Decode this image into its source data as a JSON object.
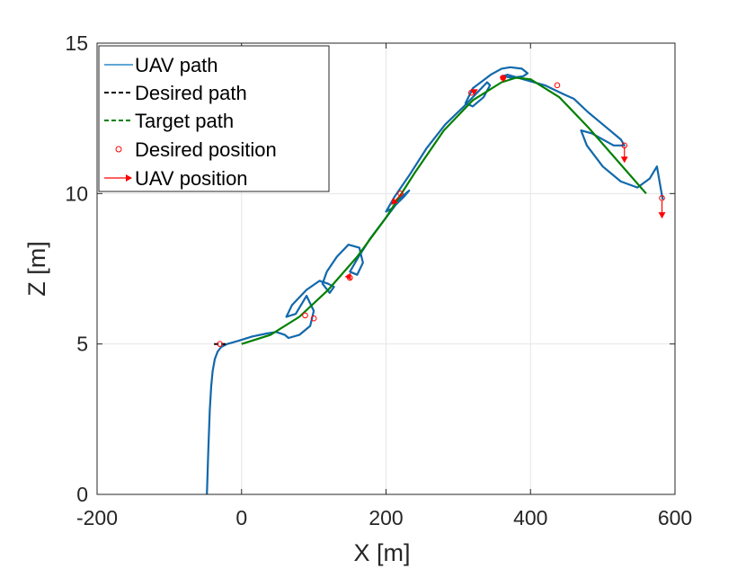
{
  "chart_data": {
    "type": "line",
    "title": "",
    "xlabel": "X [m]",
    "ylabel": "Z [m]",
    "xlim": [
      -200,
      600
    ],
    "ylim": [
      0,
      15
    ],
    "xticks": [
      -200,
      0,
      200,
      400,
      600
    ],
    "yticks": [
      0,
      5,
      10,
      15
    ],
    "xtick_labels": [
      "-200",
      "0",
      "200",
      "400",
      "600"
    ],
    "ytick_labels": [
      "0",
      "5",
      "10",
      "15"
    ],
    "grid": true,
    "legend_position": "top-left",
    "colors": {
      "uav_path": "#1f5f9a",
      "uav_path_inner": "#0072bd",
      "desired_path": "#000000",
      "target_path": "#008000",
      "desired_position": "#ff0000",
      "uav_position": "#ff0000"
    },
    "series": [
      {
        "name": "UAV path",
        "style": "solid",
        "x": [
          -48,
          -46,
          -44,
          -42,
          -40,
          -37,
          -33,
          -28,
          -20,
          -5,
          15,
          35,
          48,
          60,
          65,
          80,
          95,
          100,
          90,
          75,
          62,
          70,
          90,
          108,
          120,
          128,
          122,
          112,
          118,
          132,
          148,
          163,
          168,
          160,
          150,
          162,
          178,
          200,
          222,
          232,
          225,
          208,
          200,
          212,
          232,
          256,
          282,
          308,
          328,
          340,
          344,
          335,
          320,
          310,
          320,
          345,
          360,
          372,
          388,
          396,
          390,
          374,
          362,
          368,
          390,
          420,
          446,
          460,
          480,
          505,
          525,
          530,
          515,
          485,
          470,
          478,
          500,
          525,
          548,
          565,
          575,
          583
        ],
        "y": [
          0.0,
          1.5,
          2.8,
          3.6,
          4.1,
          4.5,
          4.75,
          4.9,
          5.0,
          5.1,
          5.25,
          5.35,
          5.4,
          5.3,
          5.2,
          5.3,
          5.6,
          6.1,
          6.6,
          6.0,
          5.9,
          6.3,
          6.8,
          7.1,
          7.0,
          6.9,
          6.7,
          7.0,
          7.4,
          7.9,
          8.3,
          8.2,
          7.7,
          7.3,
          7.4,
          7.9,
          8.5,
          9.2,
          9.9,
          10.1,
          9.9,
          9.5,
          9.4,
          9.9,
          10.6,
          11.5,
          12.3,
          12.9,
          13.4,
          13.7,
          13.6,
          13.2,
          12.9,
          13.0,
          13.5,
          13.95,
          14.15,
          14.2,
          14.15,
          14.0,
          13.9,
          13.85,
          13.9,
          13.95,
          13.8,
          13.6,
          13.3,
          13.15,
          12.7,
          12.2,
          11.8,
          11.6,
          11.6,
          12.0,
          12.1,
          11.6,
          10.9,
          10.4,
          10.2,
          10.5,
          10.9,
          9.8
        ]
      },
      {
        "name": "Desired path",
        "style": "dashed",
        "x": [
          -38,
          -30,
          -22
        ],
        "y": [
          5.0,
          5.0,
          5.0
        ]
      },
      {
        "name": "Target path",
        "style": "dashed",
        "x": [
          0,
          40,
          80,
          120,
          160,
          200,
          240,
          280,
          320,
          360,
          380,
          400,
          440,
          480,
          520,
          560
        ],
        "y": [
          5.0,
          5.3,
          5.9,
          6.8,
          7.9,
          9.2,
          10.7,
          12.1,
          13.1,
          13.7,
          13.85,
          13.8,
          13.2,
          12.2,
          11.1,
          10.0
        ]
      },
      {
        "name": "Desired position",
        "style": "marker-circle",
        "x": [
          -30,
          88,
          100,
          150,
          220,
          318,
          362,
          437,
          530,
          582
        ],
        "y": [
          5.0,
          5.95,
          5.85,
          7.2,
          10.0,
          13.35,
          13.85,
          13.6,
          11.6,
          9.85
        ]
      },
      {
        "name": "UAV position",
        "style": "arrow",
        "points": [
          {
            "x": 222,
            "y": 10.0,
            "dx": -14,
            "dy": -0.35
          },
          {
            "x": 147,
            "y": 7.3,
            "dx": 4,
            "dy": -0.15
          },
          {
            "x": 530,
            "y": 11.55,
            "dx": 0,
            "dy": -0.5
          },
          {
            "x": 582,
            "y": 9.75,
            "dx": 0,
            "dy": -0.55
          },
          {
            "x": 360,
            "y": 13.8,
            "dx": 6,
            "dy": 0.1
          },
          {
            "x": 318,
            "y": 13.35,
            "dx": 8,
            "dy": 0.1
          }
        ]
      }
    ],
    "legend": [
      {
        "label": "UAV path",
        "style": "solid",
        "color": "#0072bd"
      },
      {
        "label": "Desired path",
        "style": "dashed",
        "color": "#000000"
      },
      {
        "label": "Target path",
        "style": "dashed",
        "color": "#008000"
      },
      {
        "label": "Desired position",
        "style": "marker-circle",
        "color": "#ff0000"
      },
      {
        "label": "UAV position",
        "style": "arrow",
        "color": "#ff0000"
      }
    ]
  }
}
